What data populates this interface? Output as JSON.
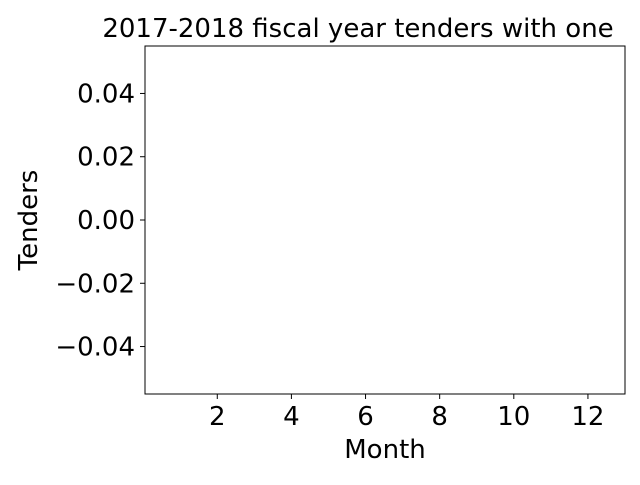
{
  "chart_data": {
    "type": "bar",
    "title": "2017-2018 fiscal year tenders with one",
    "xlabel": "Month",
    "ylabel": "Tenders",
    "x": [],
    "values": [],
    "xlim": [
      0.05,
      13.0
    ],
    "ylim": [
      -0.055,
      0.055
    ],
    "xticks": [
      2,
      4,
      6,
      8,
      10,
      12
    ],
    "xtick_labels": [
      "2",
      "4",
      "6",
      "8",
      "10",
      "12"
    ],
    "yticks": [
      -0.04,
      -0.02,
      0.0,
      0.02,
      0.04
    ],
    "ytick_labels": [
      "−0.04",
      "−0.02",
      "0.00",
      "0.02",
      "0.04"
    ],
    "grid": false,
    "legend": "none",
    "colors": {
      "axes": "#000000",
      "background": "#ffffff"
    }
  }
}
